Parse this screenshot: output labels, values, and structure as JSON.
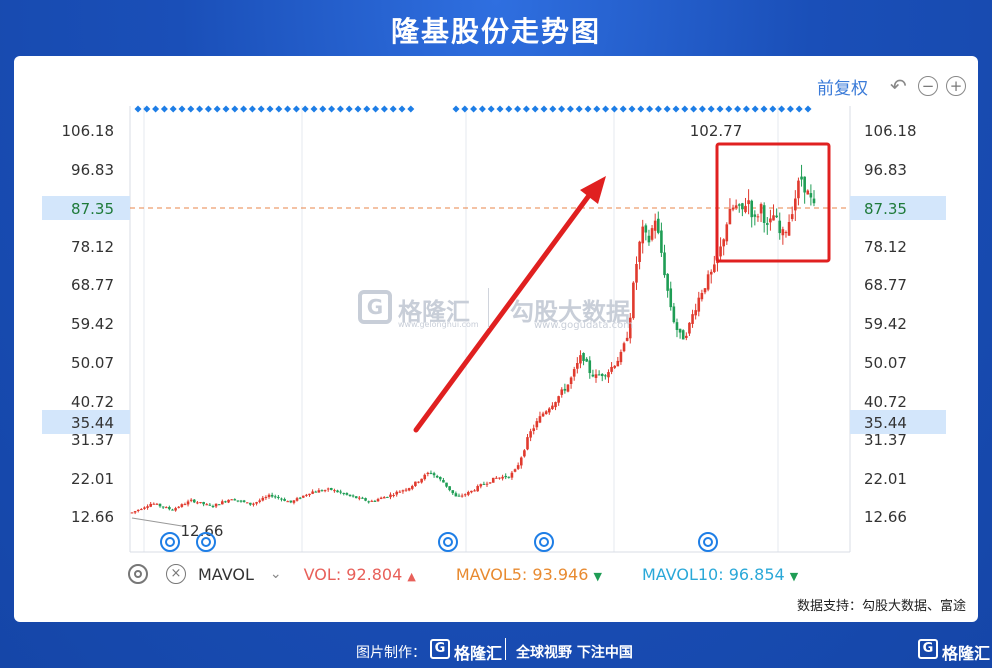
{
  "title": "隆基股份走势图",
  "toolbar": {
    "adjust_label": "前复权",
    "undo_icon": "undo-icon",
    "zoom_out_icon": "minus-circle-icon",
    "zoom_in_icon": "plus-circle-icon"
  },
  "watermark": {
    "left_text": "格隆汇",
    "left_url": "www.gelonghui.com",
    "right_text": "勾股大数据",
    "right_url": "www.gogudata.com"
  },
  "volume": {
    "settings_icon": "gear-icon",
    "close_icon": "close-icon",
    "indicator": "MAVOL",
    "vol_label": "VOL: 92.804",
    "mavol5_label": "MAVOL5: 93.946",
    "mavol10_label": "MAVOL10: 96.854",
    "colors": {
      "vol": "#e8605a",
      "mavol5": "#e88a30",
      "mavol10": "#2aa8d8"
    }
  },
  "source_text": "数据支持：勾股大数据、富途",
  "footer": {
    "made_by": "图片制作：",
    "logo": "格隆汇",
    "slogan": "全球视野 下注中国",
    "corner_logo": "格隆汇"
  },
  "chart_data": {
    "type": "candlestick",
    "y_ticks": [
      "106.18",
      "96.83",
      "87.35",
      "78.12",
      "68.77",
      "59.42",
      "50.07",
      "40.72",
      "35.44",
      "31.37",
      "22.01",
      "12.66"
    ],
    "ylim": [
      12.66,
      106.18
    ],
    "current_price": "87.35",
    "reference_price": "35.44",
    "max_label": "102.77",
    "min_label": "12.66",
    "colors": {
      "up": "#e03a2e",
      "down": "#1f9d55",
      "price_line": "#e8844a",
      "marker": "#1e7ee6",
      "highlight_box": "#e02020",
      "arrow": "#e02020"
    },
    "close_path": [
      [
        0,
        13.5
      ],
      [
        3,
        15.8
      ],
      [
        6,
        14.2
      ],
      [
        9,
        16.5
      ],
      [
        12,
        15.0
      ],
      [
        15,
        17.0
      ],
      [
        18,
        15.5
      ],
      [
        21,
        17.8
      ],
      [
        24,
        16.0
      ],
      [
        27,
        18.6
      ],
      [
        30,
        19.2
      ],
      [
        33,
        17.5
      ],
      [
        36,
        16.2
      ],
      [
        39,
        17.8
      ],
      [
        42,
        19.8
      ],
      [
        45,
        23.5
      ],
      [
        47,
        21.0
      ],
      [
        49,
        17.2
      ],
      [
        51,
        18.5
      ],
      [
        53,
        20.5
      ],
      [
        55,
        22.0
      ],
      [
        57,
        22.5
      ],
      [
        58,
        24.0
      ],
      [
        59,
        28.0
      ],
      [
        60,
        32.5
      ],
      [
        62,
        37.5
      ],
      [
        64,
        41.0
      ],
      [
        66,
        45.0
      ],
      [
        68,
        52.0
      ],
      [
        69,
        48.0
      ],
      [
        70,
        46.5
      ],
      [
        72,
        48.0
      ],
      [
        74,
        52.0
      ],
      [
        75,
        58.0
      ],
      [
        76,
        72.0
      ],
      [
        77,
        82.0
      ],
      [
        78,
        79.0
      ],
      [
        79,
        85.0
      ],
      [
        80,
        76.0
      ],
      [
        81,
        66.0
      ],
      [
        82,
        59.0
      ],
      [
        83,
        55.5
      ],
      [
        84,
        58.0
      ],
      [
        85,
        63.0
      ],
      [
        86,
        67.0
      ],
      [
        87,
        70.0
      ],
      [
        88,
        72.5
      ],
      [
        89,
        78.0
      ],
      [
        90,
        85.0
      ],
      [
        91,
        88.0
      ],
      [
        92,
        86.0
      ],
      [
        93,
        90.0
      ],
      [
        94,
        84.0
      ],
      [
        95,
        88.0
      ],
      [
        96,
        82.0
      ],
      [
        97,
        86.0
      ],
      [
        98,
        80.0
      ],
      [
        99,
        83.0
      ],
      [
        100,
        89.0
      ],
      [
        101,
        95.0
      ],
      [
        102,
        91.0
      ],
      [
        103,
        87.35
      ]
    ]
  }
}
